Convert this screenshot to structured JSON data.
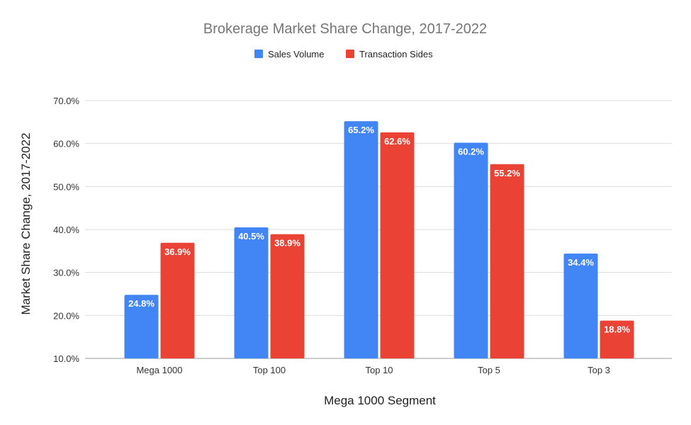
{
  "chart_data": {
    "type": "bar",
    "title": "Brokerage Market Share Change, 2017-2022",
    "xlabel": "Mega 1000 Segment",
    "ylabel": "Market Share Change, 2017-2022",
    "ylim": [
      10,
      70
    ],
    "yticks": [
      "10.0%",
      "20.0%",
      "30.0%",
      "40.0%",
      "50.0%",
      "60.0%",
      "70.0%"
    ],
    "grid": true,
    "legend_position": "top",
    "categories": [
      "Mega 1000",
      "Top 100",
      "Top 10",
      "Top 5",
      "Top 3"
    ],
    "series": [
      {
        "name": "Sales Volume",
        "color": "#4285F4",
        "values": [
          24.8,
          40.5,
          65.2,
          60.2,
          34.4
        ],
        "labels": [
          "24.8%",
          "40.5%",
          "65.2%",
          "60.2%",
          "34.4%"
        ]
      },
      {
        "name": "Transaction Sides",
        "color": "#EA4335",
        "values": [
          36.9,
          38.9,
          62.6,
          55.2,
          18.8
        ],
        "labels": [
          "36.9%",
          "38.9%",
          "62.6%",
          "55.2%",
          "18.8%"
        ]
      }
    ]
  }
}
